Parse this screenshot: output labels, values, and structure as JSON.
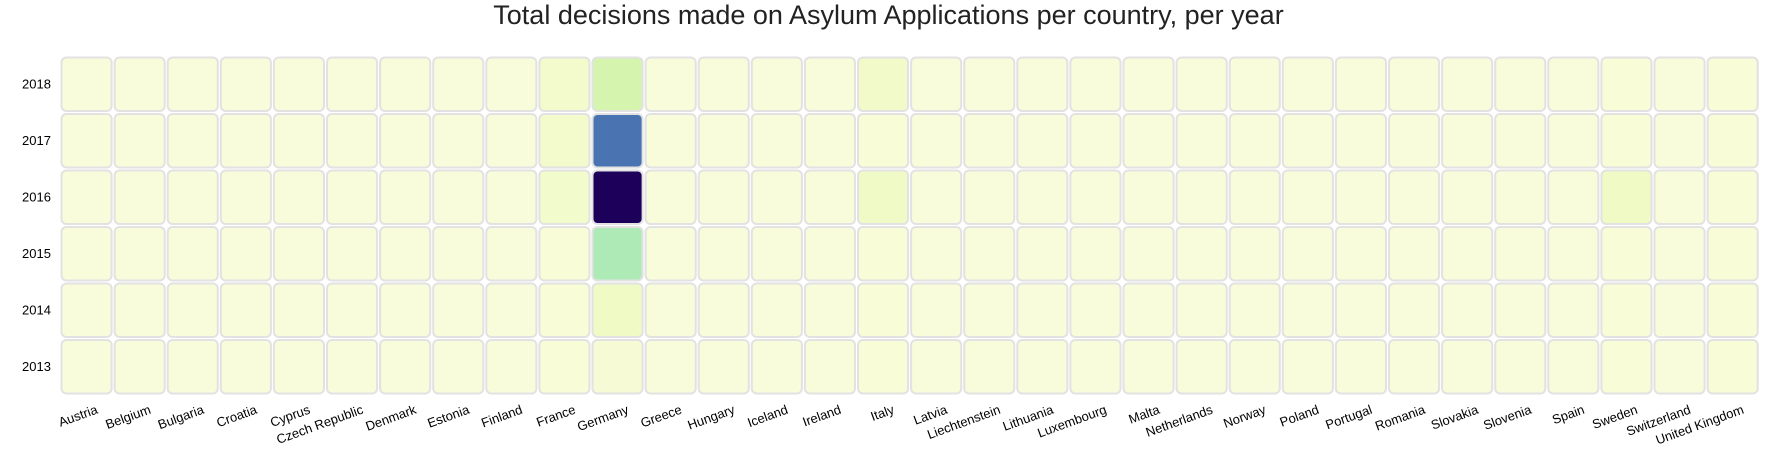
{
  "chart_data": {
    "type": "heatmap",
    "title": "Total decisions made on Asylum Applications per country, per year",
    "x_categories": [
      "Austria",
      "Belgium",
      "Bulgaria",
      "Croatia",
      "Cyprus",
      "Czech Republic",
      "Denmark",
      "Estonia",
      "Finland",
      "France",
      "Germany",
      "Greece",
      "Hungary",
      "Iceland",
      "Ireland",
      "Italy",
      "Latvia",
      "Liechtenstein",
      "Lithuania",
      "Luxembourg",
      "Malta",
      "Netherlands",
      "Norway",
      "Poland",
      "Portugal",
      "Romania",
      "Slovakia",
      "Slovenia",
      "Spain",
      "Sweden",
      "Switzerland",
      "United Kingdom"
    ],
    "y_categories": [
      "2018",
      "2017",
      "2016",
      "2015",
      "2014",
      "2013"
    ],
    "values": [
      [
        0.01,
        0.01,
        0.005,
        0.005,
        0.005,
        0.005,
        0.005,
        0.005,
        0.005,
        0.06,
        0.28,
        0.01,
        0.005,
        0.005,
        0.005,
        0.08,
        0.005,
        0.005,
        0.005,
        0.005,
        0.005,
        0.01,
        0.005,
        0.005,
        0.005,
        0.005,
        0.005,
        0.005,
        0.01,
        0.02,
        0.01,
        0.02
      ],
      [
        0.01,
        0.01,
        0.005,
        0.005,
        0.005,
        0.005,
        0.005,
        0.005,
        0.005,
        0.06,
        0.75,
        0.01,
        0.005,
        0.005,
        0.005,
        0.02,
        0.005,
        0.005,
        0.005,
        0.005,
        0.005,
        0.01,
        0.005,
        0.005,
        0.005,
        0.005,
        0.005,
        0.005,
        0.01,
        0.02,
        0.01,
        0.02
      ],
      [
        0.01,
        0.01,
        0.005,
        0.005,
        0.005,
        0.005,
        0.005,
        0.005,
        0.005,
        0.07,
        1.0,
        0.01,
        0.005,
        0.005,
        0.005,
        0.09,
        0.005,
        0.005,
        0.005,
        0.005,
        0.005,
        0.01,
        0.005,
        0.005,
        0.005,
        0.005,
        0.005,
        0.005,
        0.01,
        0.1,
        0.01,
        0.02
      ],
      [
        0.01,
        0.01,
        0.005,
        0.005,
        0.005,
        0.005,
        0.005,
        0.005,
        0.005,
        0.02,
        0.45,
        0.01,
        0.005,
        0.005,
        0.005,
        0.02,
        0.005,
        0.005,
        0.005,
        0.005,
        0.005,
        0.01,
        0.005,
        0.005,
        0.005,
        0.005,
        0.005,
        0.005,
        0.01,
        0.02,
        0.01,
        0.02
      ],
      [
        0.01,
        0.01,
        0.005,
        0.005,
        0.005,
        0.005,
        0.005,
        0.005,
        0.005,
        0.02,
        0.1,
        0.01,
        0.005,
        0.005,
        0.005,
        0.02,
        0.005,
        0.005,
        0.005,
        0.005,
        0.005,
        0.01,
        0.005,
        0.005,
        0.005,
        0.005,
        0.005,
        0.005,
        0.01,
        0.02,
        0.01,
        0.02
      ],
      [
        0.01,
        0.01,
        0.005,
        0.005,
        0.005,
        0.005,
        0.005,
        0.005,
        0.005,
        0.02,
        0.03,
        0.01,
        0.005,
        0.005,
        0.005,
        0.02,
        0.005,
        0.005,
        0.005,
        0.005,
        0.005,
        0.01,
        0.005,
        0.005,
        0.005,
        0.005,
        0.005,
        0.005,
        0.01,
        0.02,
        0.01,
        0.02
      ]
    ],
    "color_scale": [
      "#fafcdc",
      "#e3f8ab",
      "#c1f0b2",
      "#75d6bd",
      "#3a52ad",
      "#1c005a"
    ],
    "cell_border_color": "#e2e2e2",
    "legend": "none",
    "grid": false
  }
}
